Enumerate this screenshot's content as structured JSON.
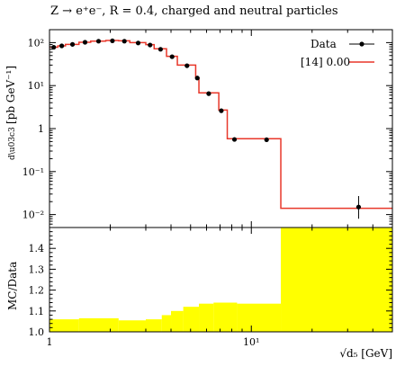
{
  "chart_data": [
    {
      "type": "line",
      "panel": "main",
      "title": "Z → e⁺e⁻, R = 0.4, charged and neutral particles",
      "ylabel": "dσ / d√d₅ [pb GeV⁻¹]",
      "yscale": "log",
      "xscale": "log",
      "xlim": [
        1,
        50
      ],
      "ylim": [
        0.005,
        200
      ],
      "yticks": [
        "10⁻²",
        "10⁻¹",
        "1",
        "10¹",
        "10²"
      ],
      "legend_position": "top-right",
      "series": [
        {
          "name": "Data",
          "kind": "points",
          "color": "#000000",
          "x": [
            1.05,
            1.15,
            1.3,
            1.5,
            1.75,
            2.05,
            2.35,
            2.75,
            3.15,
            3.55,
            4.05,
            4.8,
            5.4,
            6.15,
            7.1,
            8.25,
            11.9,
            34.0
          ],
          "y": [
            78,
            84,
            91,
            102,
            108,
            110,
            108,
            98,
            88,
            70,
            47,
            29,
            15,
            6.5,
            2.6,
            0.56,
            0.55,
            0.015
          ],
          "yerr_hi": [
            null,
            null,
            null,
            null,
            null,
            null,
            null,
            null,
            null,
            null,
            null,
            null,
            null,
            null,
            null,
            null,
            null,
            0.012
          ],
          "yerr_lo": [
            null,
            null,
            null,
            null,
            null,
            null,
            null,
            null,
            null,
            null,
            null,
            null,
            null,
            null,
            null,
            null,
            null,
            0.007
          ]
        },
        {
          "name": "[14] 0.00",
          "kind": "histogram",
          "color": "#e8372a",
          "edges": [
            1.0,
            1.1,
            1.2,
            1.4,
            1.6,
            1.9,
            2.2,
            2.5,
            3.0,
            3.3,
            3.8,
            4.3,
            5.3,
            5.5,
            6.9,
            7.6,
            9.7,
            14.0,
            50.0
          ],
          "values": [
            78,
            84,
            91,
            102,
            108,
            112,
            110,
            100,
            90,
            72,
            48,
            30,
            15,
            6.8,
            2.7,
            0.58,
            0.58,
            0.014
          ]
        }
      ]
    },
    {
      "type": "area",
      "panel": "ratio",
      "ylabel": "MC/Data",
      "xlabel": "√d₅ [GeV]",
      "xscale": "log",
      "xlim": [
        1,
        50
      ],
      "ylim": [
        1.0,
        1.5
      ],
      "yticks": [
        "1.0",
        "1.1",
        "1.2",
        "1.3",
        "1.4"
      ],
      "xticks": [
        "1",
        "10¹"
      ],
      "band_color": "#ffff00",
      "edges": [
        1.0,
        1.4,
        2.2,
        3.0,
        3.6,
        4.0,
        4.6,
        5.5,
        6.5,
        8.5,
        14.0,
        50.0
      ],
      "values": [
        1.06,
        1.065,
        1.055,
        1.06,
        1.08,
        1.1,
        1.12,
        1.135,
        1.14,
        1.135,
        1.5
      ]
    }
  ]
}
